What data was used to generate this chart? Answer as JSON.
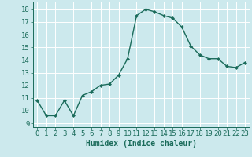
{
  "x": [
    0,
    1,
    2,
    3,
    4,
    5,
    6,
    7,
    8,
    9,
    10,
    11,
    12,
    13,
    14,
    15,
    16,
    17,
    18,
    19,
    20,
    21,
    22,
    23
  ],
  "y": [
    10.8,
    9.6,
    9.6,
    10.8,
    9.6,
    11.2,
    11.5,
    12.0,
    12.1,
    12.8,
    14.1,
    17.5,
    18.0,
    17.8,
    17.5,
    17.3,
    16.6,
    15.1,
    14.4,
    14.1,
    14.1,
    13.5,
    13.4,
    13.8
  ],
  "line_color": "#1a6b5a",
  "marker": "D",
  "marker_size": 2.0,
  "line_width": 1.0,
  "xlabel": "Humidex (Indice chaleur)",
  "xlabel_fontsize": 7,
  "ylabel_ticks": [
    9,
    10,
    11,
    12,
    13,
    14,
    15,
    16,
    17,
    18
  ],
  "xlim": [
    -0.5,
    23.5
  ],
  "ylim": [
    8.7,
    18.6
  ],
  "bg_color": "#cce9ed",
  "grid_color": "#ffffff",
  "tick_fontsize": 6.5
}
